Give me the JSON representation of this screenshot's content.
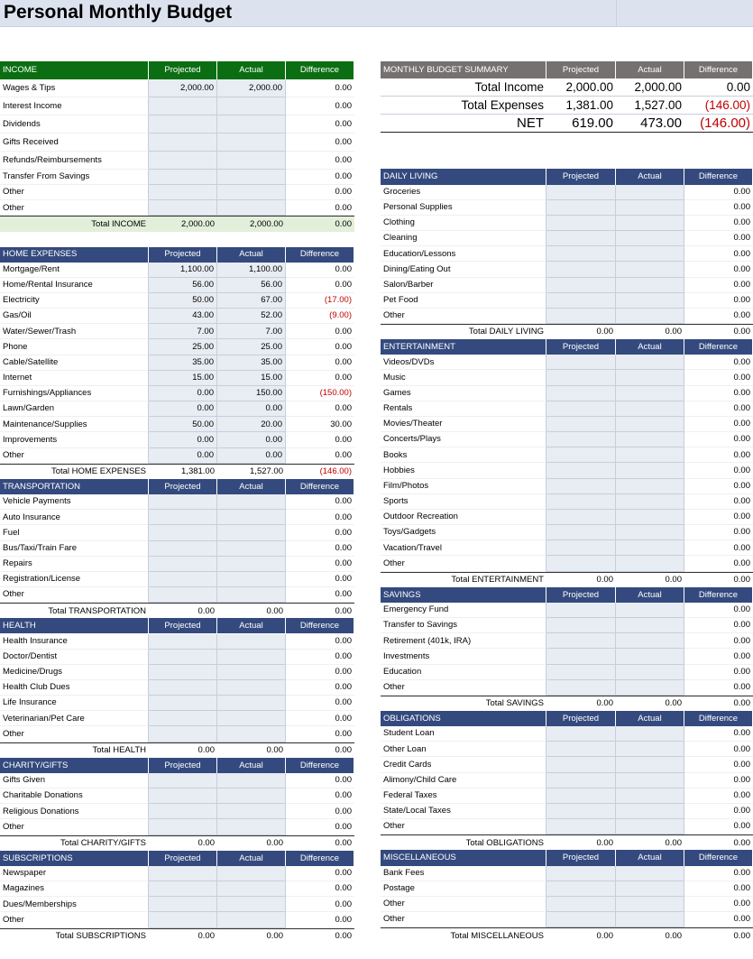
{
  "title": "Personal Monthly Budget",
  "left_sections": [
    {
      "columns": [
        "INCOME",
        "Projected",
        "Actual",
        "Difference"
      ],
      "rows": [
        [
          "Wages & Tips",
          "2,000.00",
          "2,000.00",
          "0.00"
        ],
        [
          "Interest Income",
          null,
          null,
          "0.00"
        ],
        [
          "Dividends",
          null,
          null,
          "0.00"
        ],
        [
          "Gifts Received",
          null,
          null,
          "0.00"
        ],
        [
          "Refunds/Reimbursements",
          null,
          null,
          "0.00"
        ],
        [
          "Transfer From Savings",
          null,
          null,
          "0.00"
        ],
        [
          "Other",
          null,
          null,
          "0.00"
        ],
        [
          "Other",
          null,
          null,
          "0.00"
        ]
      ],
      "total": [
        "Total INCOME",
        "2,000.00",
        "2,000.00",
        "0.00"
      ]
    },
    {
      "columns": [
        "HOME EXPENSES",
        "Projected",
        "Actual",
        "Difference"
      ],
      "rows": [
        [
          "Mortgage/Rent",
          "1,100.00",
          "1,100.00",
          "0.00"
        ],
        [
          "Home/Rental Insurance",
          "56.00",
          "56.00",
          "0.00"
        ],
        [
          "Electricity",
          "50.00",
          "67.00",
          "(17.00)"
        ],
        [
          "Gas/Oil",
          "43.00",
          "52.00",
          "(9.00)"
        ],
        [
          "Water/Sewer/Trash",
          "7.00",
          "7.00",
          "0.00"
        ],
        [
          "Phone",
          "25.00",
          "25.00",
          "0.00"
        ],
        [
          "Cable/Satellite",
          "35.00",
          "35.00",
          "0.00"
        ],
        [
          "Internet",
          "15.00",
          "15.00",
          "0.00"
        ],
        [
          "Furnishings/Appliances",
          "0.00",
          "150.00",
          "(150.00)"
        ],
        [
          "Lawn/Garden",
          "0.00",
          "0.00",
          "0.00"
        ],
        [
          "Maintenance/Supplies",
          "50.00",
          "20.00",
          "30.00"
        ],
        [
          "Improvements",
          "0.00",
          "0.00",
          "0.00"
        ],
        [
          "Other",
          "0.00",
          "0.00",
          "0.00"
        ]
      ],
      "total": [
        "Total HOME EXPENSES",
        "1,381.00",
        "1,527.00",
        "(146.00)"
      ]
    },
    {
      "columns": [
        "TRANSPORTATION",
        "Projected",
        "Actual",
        "Difference"
      ],
      "rows": [
        [
          "Vehicle Payments",
          null,
          null,
          "0.00"
        ],
        [
          "Auto Insurance",
          null,
          null,
          "0.00"
        ],
        [
          "Fuel",
          null,
          null,
          "0.00"
        ],
        [
          "Bus/Taxi/Train Fare",
          null,
          null,
          "0.00"
        ],
        [
          "Repairs",
          null,
          null,
          "0.00"
        ],
        [
          "Registration/License",
          null,
          null,
          "0.00"
        ],
        [
          "Other",
          null,
          null,
          "0.00"
        ]
      ],
      "total": [
        "Total TRANSPORTATION",
        "0.00",
        "0.00",
        "0.00"
      ]
    },
    {
      "columns": [
        "HEALTH",
        "Projected",
        "Actual",
        "Difference"
      ],
      "rows": [
        [
          "Health Insurance",
          null,
          null,
          "0.00"
        ],
        [
          "Doctor/Dentist",
          null,
          null,
          "0.00"
        ],
        [
          "Medicine/Drugs",
          null,
          null,
          "0.00"
        ],
        [
          "Health Club Dues",
          null,
          null,
          "0.00"
        ],
        [
          "Life Insurance",
          null,
          null,
          "0.00"
        ],
        [
          "Veterinarian/Pet Care",
          null,
          null,
          "0.00"
        ],
        [
          "Other",
          null,
          null,
          "0.00"
        ]
      ],
      "total": [
        "Total HEALTH",
        "0.00",
        "0.00",
        "0.00"
      ]
    },
    {
      "columns": [
        "CHARITY/GIFTS",
        "Projected",
        "Actual",
        "Difference"
      ],
      "rows": [
        [
          "Gifts Given",
          null,
          null,
          "0.00"
        ],
        [
          "Charitable Donations",
          null,
          null,
          "0.00"
        ],
        [
          "Religious Donations",
          null,
          null,
          "0.00"
        ],
        [
          "Other",
          null,
          null,
          "0.00"
        ]
      ],
      "total": [
        "Total CHARITY/GIFTS",
        "0.00",
        "0.00",
        "0.00"
      ]
    },
    {
      "columns": [
        "SUBSCRIPTIONS",
        "Projected",
        "Actual",
        "Difference"
      ],
      "rows": [
        [
          "Newspaper",
          null,
          null,
          "0.00"
        ],
        [
          "Magazines",
          null,
          null,
          "0.00"
        ],
        [
          "Dues/Memberships",
          null,
          null,
          "0.00"
        ],
        [
          "Other",
          null,
          null,
          "0.00"
        ]
      ],
      "total": [
        "Total SUBSCRIPTIONS",
        "0.00",
        "0.00",
        "0.00"
      ]
    }
  ],
  "summary": {
    "columns": [
      "MONTHLY BUDGET SUMMARY",
      "Projected",
      "Actual",
      "Difference"
    ],
    "rows": [
      [
        "Total Income",
        "2,000.00",
        "2,000.00",
        "0.00"
      ],
      [
        "Total Expenses",
        "1,381.00",
        "1,527.00",
        "(146.00)"
      ],
      [
        "NET",
        "619.00",
        "473.00",
        "(146.00)"
      ]
    ]
  },
  "right_sections": [
    {
      "columns": [
        "DAILY LIVING",
        "Projected",
        "Actual",
        "Difference"
      ],
      "rows": [
        [
          "Groceries",
          null,
          null,
          "0.00"
        ],
        [
          "Personal Supplies",
          null,
          null,
          "0.00"
        ],
        [
          "Clothing",
          null,
          null,
          "0.00"
        ],
        [
          "Cleaning",
          null,
          null,
          "0.00"
        ],
        [
          "Education/Lessons",
          null,
          null,
          "0.00"
        ],
        [
          "Dining/Eating Out",
          null,
          null,
          "0.00"
        ],
        [
          "Salon/Barber",
          null,
          null,
          "0.00"
        ],
        [
          "Pet Food",
          null,
          null,
          "0.00"
        ],
        [
          "Other",
          null,
          null,
          "0.00"
        ]
      ],
      "total": [
        "Total DAILY LIVING",
        "0.00",
        "0.00",
        "0.00"
      ]
    },
    {
      "columns": [
        "ENTERTAINMENT",
        "Projected",
        "Actual",
        "Difference"
      ],
      "rows": [
        [
          "Videos/DVDs",
          null,
          null,
          "0.00"
        ],
        [
          "Music",
          null,
          null,
          "0.00"
        ],
        [
          "Games",
          null,
          null,
          "0.00"
        ],
        [
          "Rentals",
          null,
          null,
          "0.00"
        ],
        [
          "Movies/Theater",
          null,
          null,
          "0.00"
        ],
        [
          "Concerts/Plays",
          null,
          null,
          "0.00"
        ],
        [
          "Books",
          null,
          null,
          "0.00"
        ],
        [
          "Hobbies",
          null,
          null,
          "0.00"
        ],
        [
          "Film/Photos",
          null,
          null,
          "0.00"
        ],
        [
          "Sports",
          null,
          null,
          "0.00"
        ],
        [
          "Outdoor Recreation",
          null,
          null,
          "0.00"
        ],
        [
          "Toys/Gadgets",
          null,
          null,
          "0.00"
        ],
        [
          "Vacation/Travel",
          null,
          null,
          "0.00"
        ],
        [
          "Other",
          null,
          null,
          "0.00"
        ]
      ],
      "total": [
        "Total ENTERTAINMENT",
        "0.00",
        "0.00",
        "0.00"
      ]
    },
    {
      "columns": [
        "SAVINGS",
        "Projected",
        "Actual",
        "Difference"
      ],
      "rows": [
        [
          "Emergency Fund",
          null,
          null,
          "0.00"
        ],
        [
          "Transfer to Savings",
          null,
          null,
          "0.00"
        ],
        [
          "Retirement (401k, IRA)",
          null,
          null,
          "0.00"
        ],
        [
          "Investments",
          null,
          null,
          "0.00"
        ],
        [
          "Education",
          null,
          null,
          "0.00"
        ],
        [
          "Other",
          null,
          null,
          "0.00"
        ]
      ],
      "total": [
        "Total SAVINGS",
        "0.00",
        "0.00",
        "0.00"
      ]
    },
    {
      "columns": [
        "OBLIGATIONS",
        "Projected",
        "Actual",
        "Difference"
      ],
      "rows": [
        [
          "Student Loan",
          null,
          null,
          "0.00"
        ],
        [
          "Other Loan",
          null,
          null,
          "0.00"
        ],
        [
          "Credit Cards",
          null,
          null,
          "0.00"
        ],
        [
          "Alimony/Child Care",
          null,
          null,
          "0.00"
        ],
        [
          "Federal Taxes",
          null,
          null,
          "0.00"
        ],
        [
          "State/Local Taxes",
          null,
          null,
          "0.00"
        ],
        [
          "Other",
          null,
          null,
          "0.00"
        ]
      ],
      "total": [
        "Total OBLIGATIONS",
        "0.00",
        "0.00",
        "0.00"
      ]
    },
    {
      "columns": [
        "MISCELLANEOUS",
        "Projected",
        "Actual",
        "Difference"
      ],
      "rows": [
        [
          "Bank Fees",
          null,
          null,
          "0.00"
        ],
        [
          "Postage",
          null,
          null,
          "0.00"
        ],
        [
          "Other",
          null,
          null,
          "0.00"
        ],
        [
          "Other",
          null,
          null,
          "0.00"
        ]
      ],
      "total": [
        "Total MISCELLANEOUS",
        "0.00",
        "0.00",
        "0.00"
      ]
    }
  ]
}
